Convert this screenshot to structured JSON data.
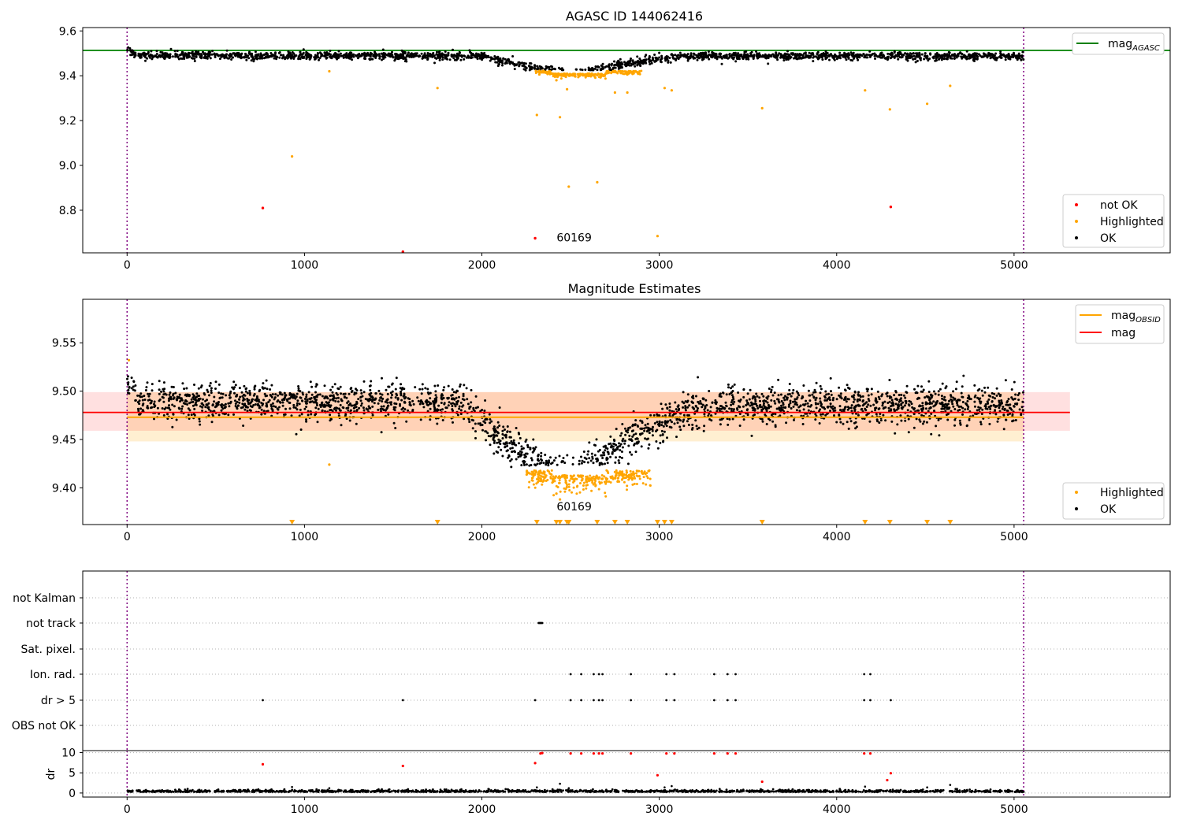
{
  "chart_data": [
    {
      "type": "scatter",
      "title": "AGASC ID 144062416",
      "xlim": [
        -250,
        5880
      ],
      "ylim": [
        8.61,
        9.615
      ],
      "xticks": [
        0,
        1000,
        2000,
        3000,
        4000,
        5000
      ],
      "yticks": [
        8.8,
        9.0,
        9.2,
        9.4,
        9.6
      ],
      "vlines": [
        0,
        5054
      ],
      "hline": {
        "name": "mag",
        "subscript": "AGASC",
        "y": 9.513,
        "color": "#008000"
      },
      "annotation": {
        "text": "60169",
        "x": 2520,
        "y": 8.625
      },
      "legend_lines": [
        {
          "name": "mag",
          "subscript": "AGASC",
          "color": "#008000"
        }
      ],
      "legend_points": [
        {
          "name": "not OK",
          "color": "#ff0000"
        },
        {
          "name": "Highlighted",
          "color": "#ffa500"
        },
        {
          "name": "OK",
          "color": "#000000"
        }
      ],
      "highlighted_points": [
        [
          930,
          9.04
        ],
        [
          1140,
          9.42
        ],
        [
          1750,
          9.345
        ],
        [
          2310,
          9.225
        ],
        [
          2420,
          9.38
        ],
        [
          2440,
          9.215
        ],
        [
          2480,
          9.34
        ],
        [
          2490,
          8.905
        ],
        [
          2650,
          8.925
        ],
        [
          2750,
          9.325
        ],
        [
          2820,
          9.325
        ],
        [
          2990,
          8.685
        ],
        [
          3030,
          9.345
        ],
        [
          3070,
          9.335
        ],
        [
          3580,
          9.255
        ],
        [
          4160,
          9.335
        ],
        [
          4300,
          9.25
        ],
        [
          4510,
          9.275
        ],
        [
          4640,
          9.355
        ]
      ],
      "notok_points": [
        [
          765,
          8.81
        ],
        [
          1555,
          8.615
        ],
        [
          2300,
          8.675
        ],
        [
          4305,
          8.815
        ]
      ]
    },
    {
      "type": "scatter",
      "title": "Magnitude Estimates",
      "xlim": [
        -250,
        5880
      ],
      "ylim": [
        9.362,
        9.595
      ],
      "xticks": [
        0,
        1000,
        2000,
        3000,
        4000,
        5000
      ],
      "yticks": [
        9.4,
        9.45,
        9.5,
        9.55
      ],
      "vlines": [
        0,
        5054
      ],
      "mag_line": {
        "name": "mag",
        "y": 9.478,
        "band": [
          9.459,
          9.499
        ],
        "x0": -250,
        "x1": 5315,
        "color": "#ff0000"
      },
      "obsid_line": {
        "name": "mag",
        "subscript": "OBSID",
        "y": 9.473,
        "band": [
          9.448,
          9.499
        ],
        "x0": 0,
        "x1": 5054,
        "color": "#ffa500"
      },
      "annotation": {
        "text": "60169",
        "x": 2520,
        "y": 9.37
      },
      "legend_lines": [
        {
          "name": "mag",
          "subscript": "OBSID",
          "color": "#ffa500"
        },
        {
          "name": "mag",
          "subscript": "",
          "color": "#ff0000"
        }
      ],
      "legend_points": [
        {
          "name": "Highlighted",
          "color": "#ffa500"
        },
        {
          "name": "OK",
          "color": "#000000"
        }
      ],
      "highlighted_markers": [
        930,
        1750,
        2310,
        2420,
        2440,
        2480,
        2490,
        2650,
        2750,
        2820,
        2990,
        3030,
        3070,
        3580,
        4160,
        4300,
        4510,
        4640
      ],
      "highlighted_points": [
        [
          10,
          9.532
        ],
        [
          1140,
          9.424
        ],
        [
          2340,
          9.415
        ],
        [
          2420,
          9.394
        ],
        [
          2440,
          9.388
        ]
      ]
    },
    {
      "type": "scatter",
      "xlim": [
        -250,
        5880
      ],
      "xticks": [
        0,
        1000,
        2000,
        3000,
        4000,
        5000
      ],
      "vlines": [
        0,
        5054
      ],
      "flag_labels": [
        "not Kalman",
        "not track",
        "Sat. pixel.",
        "Ion. rad.",
        "dr > 5",
        "OBS not OK"
      ],
      "flags": {
        "not track": [
          2320,
          2325,
          2330,
          2335,
          2340
        ],
        "Ion. rad.": [
          2500,
          2560,
          2630,
          2660,
          2680,
          2840,
          3040,
          3085,
          3310,
          3385,
          3430,
          4155,
          4190
        ],
        "dr > 5": [
          765,
          1555,
          2300,
          2500,
          2560,
          2630,
          2660,
          2680,
          2840,
          3040,
          3085,
          3310,
          3385,
          3430,
          4155,
          4190,
          4305
        ]
      },
      "dr_axis": {
        "ylabel": "dr",
        "yticks": [
          0,
          5,
          10
        ],
        "ylim": [
          -1,
          10.5
        ],
        "red_points": [
          [
            765,
            7.1
          ],
          [
            1555,
            6.7
          ],
          [
            2300,
            7.4
          ],
          [
            2330,
            9.8
          ],
          [
            2340,
            9.9
          ],
          [
            2500,
            9.8
          ],
          [
            2560,
            9.8
          ],
          [
            2630,
            9.8
          ],
          [
            2660,
            9.8
          ],
          [
            2680,
            9.8
          ],
          [
            2840,
            9.8
          ],
          [
            2990,
            4.4
          ],
          [
            3040,
            9.8
          ],
          [
            3085,
            9.8
          ],
          [
            3310,
            9.8
          ],
          [
            3385,
            9.8
          ],
          [
            3430,
            9.8
          ],
          [
            3580,
            2.8
          ],
          [
            4155,
            9.8
          ],
          [
            4190,
            9.8
          ],
          [
            4285,
            3.2
          ],
          [
            4305,
            4.9
          ]
        ],
        "black_points": [
          [
            930,
            1.5
          ],
          [
            1140,
            1.2
          ],
          [
            2310,
            1.4
          ],
          [
            2440,
            2.3
          ],
          [
            2490,
            1.2
          ],
          [
            3030,
            1.4
          ],
          [
            3070,
            1.7
          ],
          [
            4160,
            1.6
          ],
          [
            4510,
            1.4
          ],
          [
            4640,
            2.0
          ]
        ]
      }
    }
  ]
}
